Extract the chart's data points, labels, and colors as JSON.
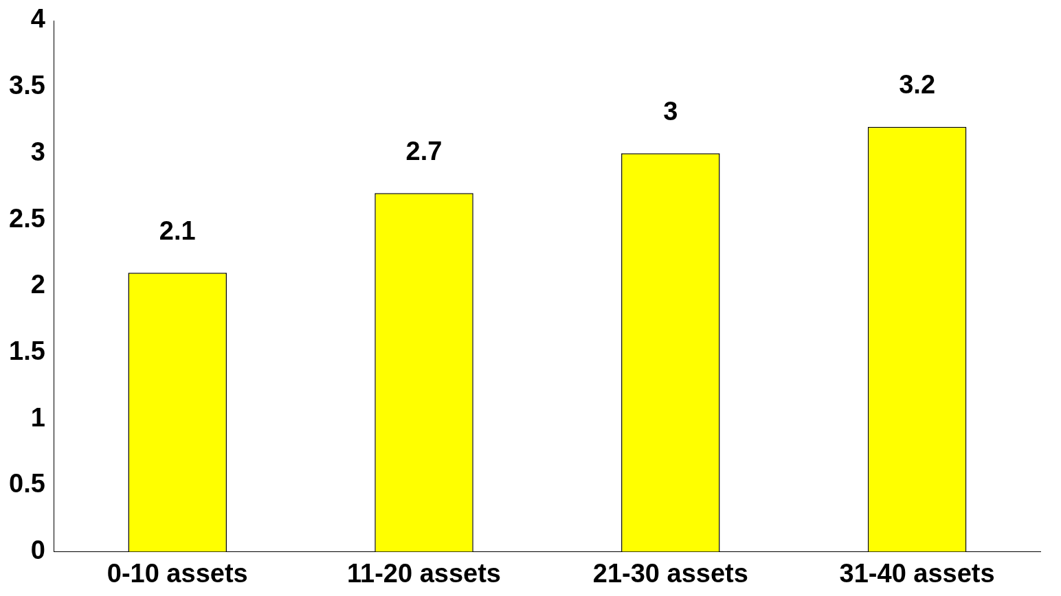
{
  "chart_data": {
    "type": "bar",
    "categories": [
      "0-10 assets",
      "11-20 assets",
      "21-30 assets",
      "31-40 assets"
    ],
    "values": [
      2.1,
      2.7,
      3,
      3.2
    ],
    "color": "#ffff00",
    "ylim": [
      0,
      4
    ],
    "yticks": [
      0,
      0.5,
      1,
      1.5,
      2,
      2.5,
      3,
      3.5,
      4
    ],
    "data_labels": true
  }
}
